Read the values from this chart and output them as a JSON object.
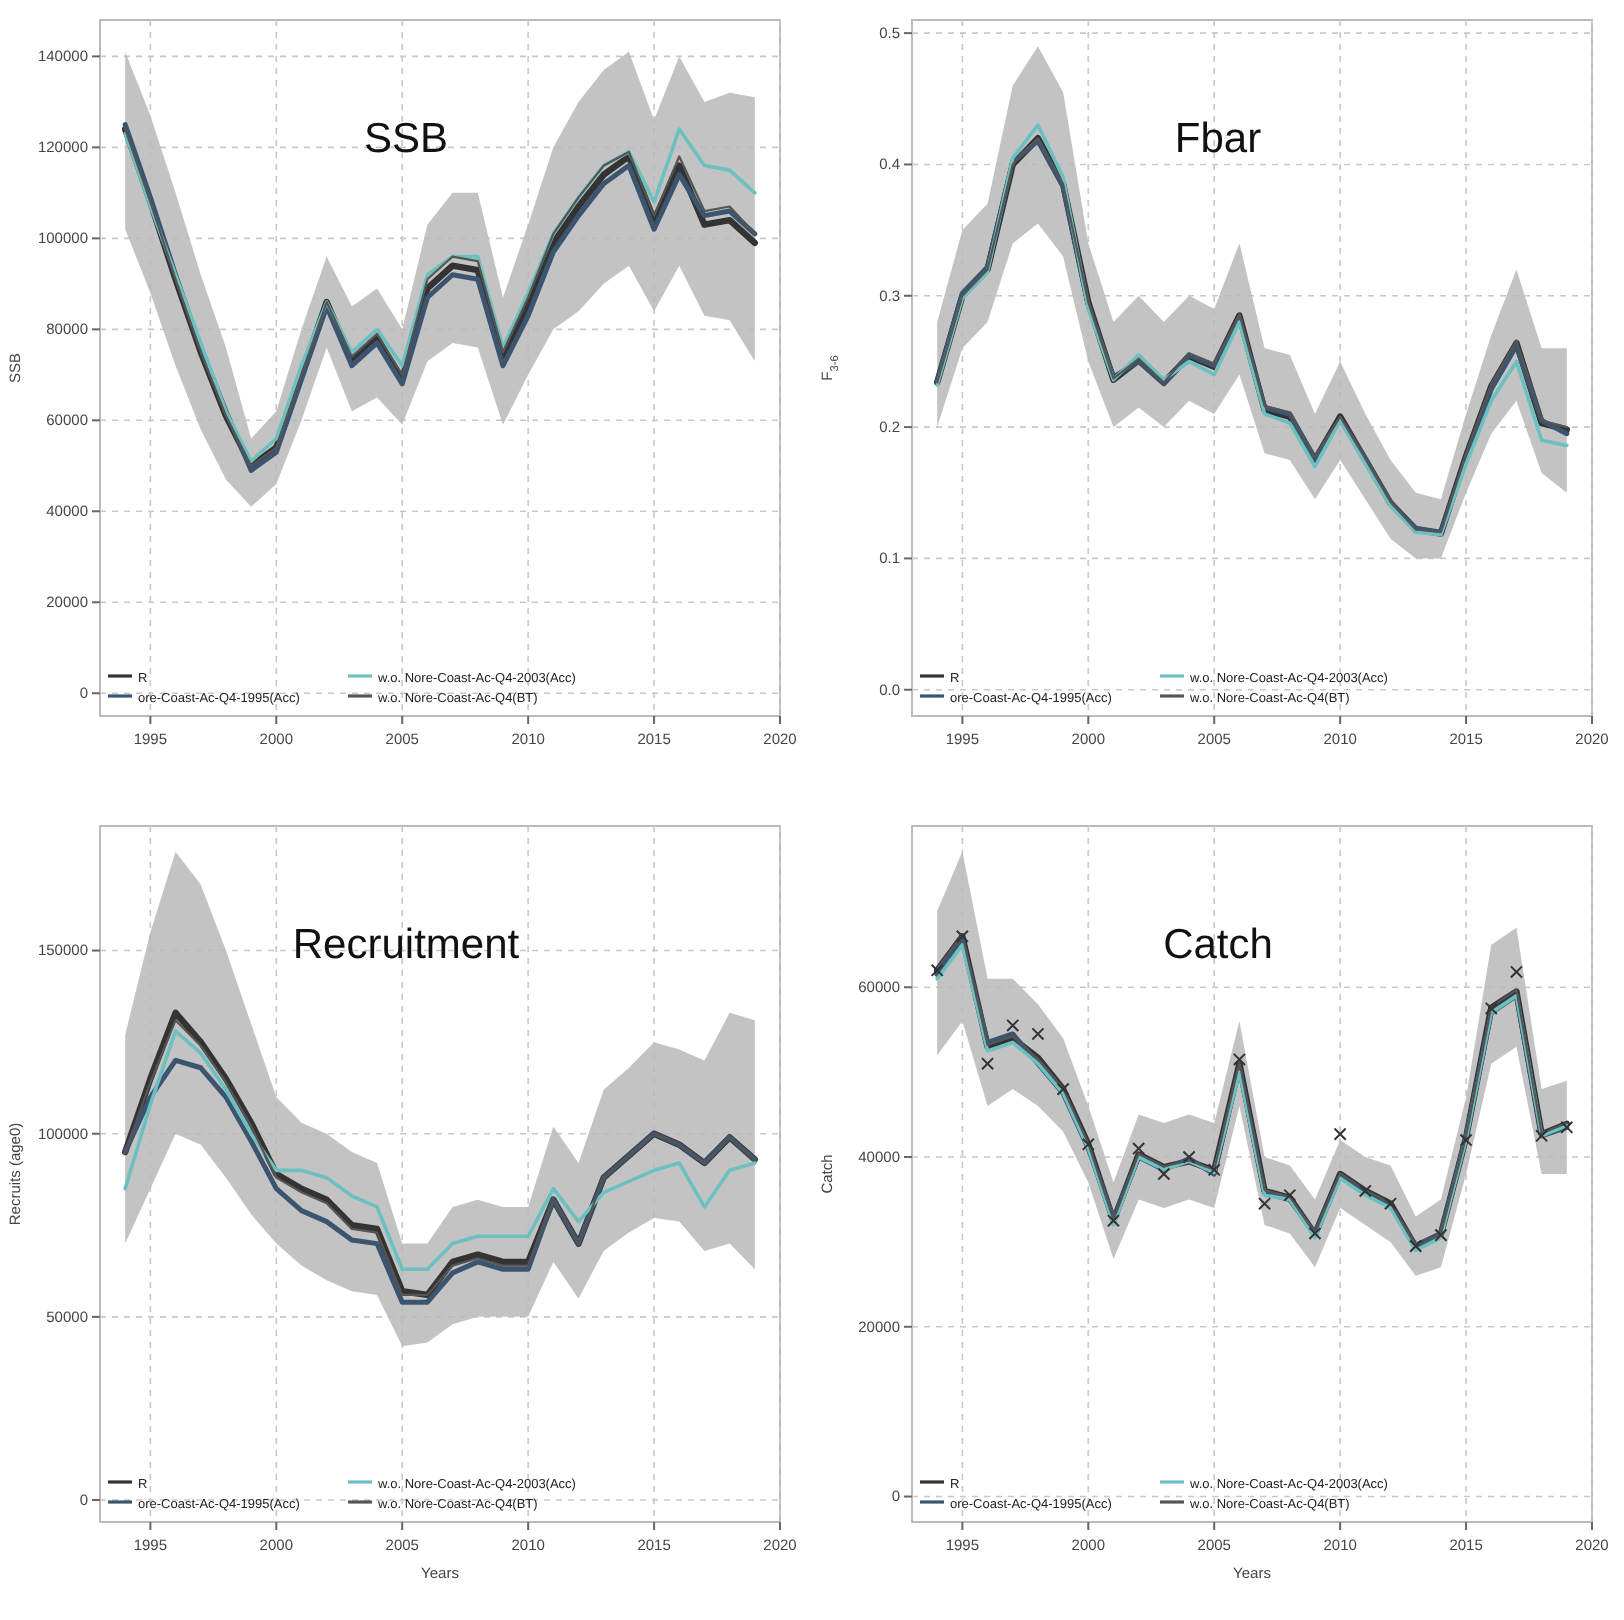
{
  "chart_data": [
    {
      "type": "line",
      "title": "SSB",
      "ylabel": "SSB",
      "x": [
        1994,
        1995,
        1996,
        1997,
        1998,
        1999,
        2000,
        2001,
        2002,
        2003,
        2004,
        2005,
        2006,
        2007,
        2008,
        2009,
        2010,
        2011,
        2012,
        2013,
        2014,
        2015,
        2016,
        2017,
        2018,
        2019
      ],
      "xlim": [
        1993,
        2020
      ],
      "xticks": [
        1995,
        2000,
        2005,
        2010,
        2015,
        2020
      ],
      "ylim": [
        -5000,
        148000
      ],
      "yticks": [
        0,
        20000,
        40000,
        60000,
        80000,
        100000,
        120000,
        140000
      ],
      "grid": true,
      "legend": "bottom left",
      "series": [
        {
          "name": "R",
          "color": "#333333",
          "values": [
            124000,
            108000,
            91000,
            75000,
            61000,
            50000,
            54000,
            70000,
            86000,
            73000,
            78000,
            69000,
            89000,
            94000,
            93000,
            73000,
            85000,
            99000,
            107000,
            114000,
            118000,
            104000,
            116000,
            103000,
            104000,
            99000
          ],
          "lower": [
            102000,
            88000,
            72000,
            58000,
            47000,
            41000,
            46000,
            60000,
            76000,
            62000,
            65000,
            59000,
            73000,
            77000,
            76000,
            59000,
            70000,
            80000,
            84000,
            90000,
            94000,
            84000,
            94000,
            83000,
            82000,
            73000
          ],
          "upper": [
            141000,
            127000,
            110000,
            92000,
            76000,
            56000,
            62000,
            80000,
            96000,
            85000,
            89000,
            80000,
            103000,
            110000,
            110000,
            87000,
            103000,
            120000,
            130000,
            137000,
            141000,
            126000,
            140000,
            130000,
            132000,
            131000
          ]
        },
        {
          "name": "ore-Coast-Ac-Q4-1995(Acc)",
          "color": "#3b5470",
          "values": [
            125000,
            109000,
            92000,
            76000,
            62000,
            49000,
            53000,
            69000,
            85000,
            72000,
            77000,
            68000,
            87000,
            92000,
            91000,
            72000,
            83000,
            97000,
            105000,
            112000,
            116000,
            102000,
            114000,
            105000,
            106000,
            101000
          ]
        },
        {
          "name": "w.o. Nore-Coast-Ac-Q4-2003(Acc)",
          "color": "#6cc0c0",
          "values": [
            123000,
            107000,
            92000,
            77000,
            62000,
            51000,
            56000,
            72000,
            86000,
            75000,
            80000,
            72000,
            92000,
            96000,
            96000,
            76000,
            88000,
            101000,
            109000,
            116000,
            119000,
            108000,
            124000,
            116000,
            115000,
            110000
          ]
        },
        {
          "name": "w.o. Nore-Coast-Ac-Q4(BT)",
          "color": "#555555",
          "values": [
            124000,
            108000,
            91000,
            75000,
            61000,
            50000,
            54000,
            70000,
            86000,
            74000,
            79000,
            70000,
            91000,
            96000,
            95000,
            75000,
            87000,
            101000,
            109000,
            116000,
            119000,
            105000,
            118000,
            106000,
            107000,
            101000
          ]
        }
      ]
    },
    {
      "type": "line",
      "title": "Fbar",
      "ylabel": "F$_{3-6}$",
      "x": [
        1994,
        1995,
        1996,
        1997,
        1998,
        1999,
        2000,
        2001,
        2002,
        2003,
        2004,
        2005,
        2006,
        2007,
        2008,
        2009,
        2010,
        2011,
        2012,
        2013,
        2014,
        2015,
        2016,
        2017,
        2018,
        2019
      ],
      "xlim": [
        1993,
        2020
      ],
      "xticks": [
        1995,
        2000,
        2005,
        2010,
        2015,
        2020
      ],
      "ylim": [
        -0.02,
        0.51
      ],
      "yticks": [
        {
          "value": 0,
          "label": "0.0"
        },
        0.1,
        0.2,
        0.3,
        0.4,
        0.5
      ],
      "grid": true,
      "legend": "bottom left",
      "series": [
        {
          "name": "R",
          "color": "#333333",
          "values": [
            0.234,
            0.3,
            0.32,
            0.4,
            0.42,
            0.385,
            0.295,
            0.236,
            0.251,
            0.234,
            0.254,
            0.246,
            0.285,
            0.213,
            0.208,
            0.175,
            0.208,
            0.175,
            0.142,
            0.122,
            0.119,
            0.178,
            0.231,
            0.264,
            0.203,
            0.198
          ],
          "lower": [
            0.2,
            0.26,
            0.28,
            0.34,
            0.355,
            0.33,
            0.25,
            0.2,
            0.215,
            0.2,
            0.22,
            0.21,
            0.24,
            0.18,
            0.175,
            0.145,
            0.175,
            0.145,
            0.115,
            0.1,
            0.1,
            0.15,
            0.195,
            0.22,
            0.165,
            0.15
          ],
          "upper": [
            0.28,
            0.35,
            0.37,
            0.46,
            0.49,
            0.455,
            0.34,
            0.28,
            0.3,
            0.28,
            0.3,
            0.29,
            0.34,
            0.26,
            0.255,
            0.21,
            0.25,
            0.21,
            0.175,
            0.15,
            0.145,
            0.21,
            0.27,
            0.32,
            0.26,
            0.26
          ]
        },
        {
          "name": "ore-Coast-Ac-Q4-1995(Acc)",
          "color": "#3b5470",
          "values": [
            0.235,
            0.302,
            0.322,
            0.402,
            0.418,
            0.383,
            0.293,
            0.238,
            0.25,
            0.233,
            0.255,
            0.247,
            0.283,
            0.215,
            0.21,
            0.176,
            0.206,
            0.176,
            0.143,
            0.123,
            0.12,
            0.176,
            0.229,
            0.262,
            0.205,
            0.195
          ]
        },
        {
          "name": "w.o. Nore-Coast-Ac-Q4-2003(Acc)",
          "color": "#6cc0c0",
          "values": [
            0.232,
            0.298,
            0.318,
            0.405,
            0.43,
            0.39,
            0.29,
            0.236,
            0.255,
            0.236,
            0.25,
            0.24,
            0.28,
            0.21,
            0.203,
            0.17,
            0.205,
            0.172,
            0.14,
            0.12,
            0.118,
            0.172,
            0.22,
            0.25,
            0.19,
            0.186
          ]
        },
        {
          "name": "w.o. Nore-Coast-Ac-Q4(BT)",
          "color": "#555555",
          "values": [
            0.234,
            0.3,
            0.32,
            0.4,
            0.42,
            0.385,
            0.295,
            0.237,
            0.252,
            0.234,
            0.256,
            0.248,
            0.286,
            0.216,
            0.211,
            0.177,
            0.208,
            0.176,
            0.143,
            0.122,
            0.12,
            0.18,
            0.233,
            0.266,
            0.205,
            0.2
          ]
        }
      ]
    },
    {
      "type": "line",
      "title": "Recruitment",
      "xlabel": "Years",
      "ylabel": "Recruits (age0)",
      "x": [
        1994,
        1995,
        1996,
        1997,
        1998,
        1999,
        2000,
        2001,
        2002,
        2003,
        2004,
        2005,
        2006,
        2007,
        2008,
        2009,
        2010,
        2011,
        2012,
        2013,
        2014,
        2015,
        2016,
        2017,
        2018,
        2019
      ],
      "xlim": [
        1993,
        2020
      ],
      "xticks": [
        1995,
        2000,
        2005,
        2010,
        2015,
        2020
      ],
      "ylim": [
        -6000,
        184000
      ],
      "yticks": [
        0,
        50000,
        100000,
        150000
      ],
      "grid": true,
      "legend": "bottom left",
      "series": [
        {
          "name": "R",
          "color": "#333333",
          "values": [
            95000,
            115000,
            133000,
            125000,
            115000,
            103000,
            89000,
            85000,
            82000,
            75000,
            74000,
            57000,
            56000,
            65000,
            67000,
            65000,
            65000,
            82000,
            70000,
            88000,
            94000,
            100000,
            97000,
            92000,
            99000,
            93000
          ],
          "lower": [
            70000,
            85000,
            100000,
            97000,
            88000,
            78000,
            70000,
            64000,
            60000,
            57000,
            56000,
            42000,
            43000,
            48000,
            50000,
            50000,
            50000,
            65000,
            55000,
            68000,
            73000,
            77000,
            76000,
            68000,
            70000,
            63000
          ],
          "upper": [
            127000,
            155000,
            177000,
            168000,
            150000,
            130000,
            110000,
            103000,
            100000,
            95000,
            92000,
            70000,
            70000,
            80000,
            82000,
            80000,
            80000,
            102000,
            92000,
            112000,
            118000,
            125000,
            123000,
            120000,
            133000,
            131000
          ]
        },
        {
          "name": "ore-Coast-Ac-Q4-1995(Acc)",
          "color": "#3b5470",
          "values": [
            95000,
            110000,
            120000,
            118000,
            110000,
            98000,
            85000,
            79000,
            76000,
            71000,
            70000,
            54000,
            54000,
            62000,
            65000,
            63000,
            63000,
            82000,
            70000,
            88000,
            94000,
            100000,
            97000,
            92000,
            99000,
            93000
          ]
        },
        {
          "name": "w.o. Nore-Coast-Ac-Q4-2003(Acc)",
          "color": "#6cc0c0",
          "values": [
            85000,
            108000,
            128000,
            122000,
            112000,
            100000,
            90000,
            90000,
            88000,
            83000,
            80000,
            63000,
            63000,
            70000,
            72000,
            72000,
            72000,
            85000,
            76000,
            84000,
            87000,
            90000,
            92000,
            80000,
            90000,
            92000
          ]
        },
        {
          "name": "w.o. Nore-Coast-Ac-Q4(BT)",
          "color": "#555555",
          "values": [
            95000,
            114000,
            131000,
            124000,
            114000,
            102000,
            88000,
            84000,
            81000,
            74000,
            73000,
            56000,
            56000,
            64000,
            66000,
            64000,
            64000,
            82000,
            70000,
            88000,
            94000,
            100000,
            97000,
            92000,
            99000,
            93000
          ]
        }
      ]
    },
    {
      "type": "line",
      "title": "Catch",
      "xlabel": "Years",
      "ylabel": "Catch",
      "x": [
        1994,
        1995,
        1996,
        1997,
        1998,
        1999,
        2000,
        2001,
        2002,
        2003,
        2004,
        2005,
        2006,
        2007,
        2008,
        2009,
        2010,
        2011,
        2012,
        2013,
        2014,
        2015,
        2016,
        2017,
        2018,
        2019
      ],
      "xlim": [
        1993,
        2020
      ],
      "xticks": [
        1995,
        2000,
        2005,
        2010,
        2015,
        2020
      ],
      "ylim": [
        -3000,
        79000
      ],
      "yticks": [
        0,
        20000,
        40000,
        60000
      ],
      "grid": true,
      "legend": "bottom left",
      "series": [
        {
          "name": "R",
          "color": "#333333",
          "values": [
            62000,
            66000,
            53000,
            54000,
            51700,
            48000,
            41500,
            32500,
            40300,
            38800,
            39500,
            38400,
            51000,
            36000,
            35200,
            30900,
            38000,
            36000,
            34500,
            29400,
            30900,
            42300,
            57600,
            59500,
            42700,
            43900
          ],
          "lower": [
            52000,
            56000,
            46000,
            48000,
            46000,
            43000,
            37000,
            28000,
            35000,
            34000,
            35000,
            34000,
            46000,
            32000,
            31000,
            27000,
            34000,
            32000,
            30000,
            26000,
            27000,
            38000,
            51000,
            53000,
            38000,
            38000
          ],
          "upper": [
            69000,
            76000,
            61000,
            61000,
            58000,
            54000,
            46000,
            37000,
            45000,
            44000,
            45000,
            44000,
            56000,
            40000,
            39000,
            35000,
            42000,
            40000,
            39000,
            33000,
            35000,
            47000,
            65000,
            67000,
            48000,
            49000
          ]
        },
        {
          "name": "ore-Coast-Ac-Q4-1995(Acc)",
          "color": "#3b5470",
          "values": [
            61500,
            65500,
            53500,
            54500,
            51000,
            47500,
            41000,
            32800,
            40000,
            38500,
            39800,
            38000,
            50500,
            35700,
            35000,
            31000,
            37800,
            35800,
            34200,
            29600,
            31000,
            42500,
            57000,
            59000,
            42500,
            43500
          ]
        },
        {
          "name": "w.o. Nore-Coast-Ac-Q4-2003(Acc)",
          "color": "#6cc0c0",
          "values": [
            61000,
            65000,
            52500,
            53500,
            51000,
            47500,
            41000,
            32000,
            40000,
            38500,
            39500,
            38200,
            50000,
            35500,
            35000,
            30500,
            37500,
            35500,
            34000,
            29000,
            30500,
            42000,
            57000,
            59000,
            42500,
            43700
          ]
        },
        {
          "name": "w.o. Nore-Coast-Ac-Q4(BT)",
          "color": "#555555",
          "values": [
            62200,
            66200,
            53200,
            54200,
            51600,
            48100,
            41600,
            32600,
            40400,
            38900,
            39600,
            38500,
            51200,
            36100,
            35300,
            31000,
            38100,
            36100,
            34600,
            29500,
            31000,
            42400,
            57700,
            59700,
            42800,
            44000
          ]
        },
        {
          "type": "scatter",
          "marker": "cross",
          "color": "#333333",
          "values": [
            62000,
            66000,
            51000,
            55500,
            54500,
            48000,
            41500,
            32500,
            41000,
            38000,
            40000,
            38500,
            51500,
            34500,
            35500,
            31000,
            42700,
            36000,
            34500,
            29500,
            30800,
            42000,
            57500,
            61800,
            42500,
            43500
          ]
        }
      ]
    }
  ]
}
